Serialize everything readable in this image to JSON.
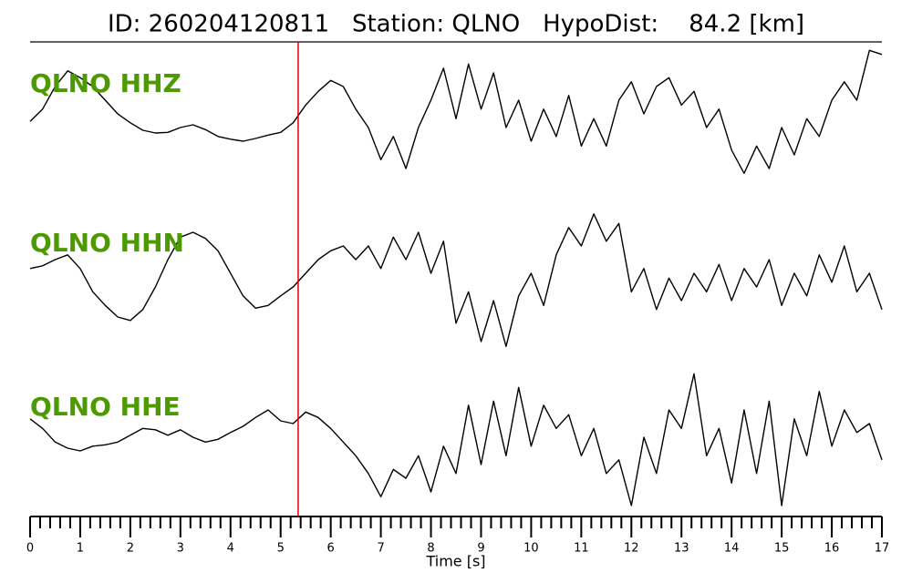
{
  "chart_data": {
    "type": "line",
    "title": "ID: 260204120811   Station: QLNO   HypoDist:    84.2 [km]",
    "x_label": "Time [s]",
    "xlim": [
      0,
      17
    ],
    "xticks": [
      0,
      1,
      2,
      3,
      4,
      5,
      6,
      7,
      8,
      9,
      10,
      11,
      12,
      13,
      14,
      15,
      16,
      17
    ],
    "pick_time": 5.35,
    "pick_color": "#e00000",
    "label_color": "#4c9a00",
    "x": [
      0,
      0.25,
      0.5,
      0.75,
      1,
      1.25,
      1.5,
      1.75,
      2,
      2.25,
      2.5,
      2.75,
      3,
      3.25,
      3.5,
      3.75,
      4,
      4.25,
      4.5,
      4.75,
      5,
      5.25,
      5.5,
      5.75,
      6,
      6.25,
      6.5,
      6.75,
      7,
      7.25,
      7.5,
      7.75,
      8,
      8.25,
      8.5,
      8.75,
      9,
      9.25,
      9.5,
      9.75,
      10,
      10.25,
      10.5,
      10.75,
      11,
      11.25,
      11.5,
      11.75,
      12,
      12.25,
      12.5,
      12.75,
      13,
      13.25,
      13.5,
      13.75,
      14,
      14.25,
      14.5,
      14.75,
      15,
      15.25,
      15.5,
      15.75,
      16,
      16.25,
      16.5,
      16.75,
      17
    ],
    "series": [
      {
        "name": "QLNO HHZ",
        "color": "#000000",
        "values": [
          -0.11,
          0.07,
          0.4,
          0.63,
          0.53,
          0.4,
          0.2,
          0,
          -0.13,
          -0.24,
          -0.28,
          -0.27,
          -0.2,
          -0.16,
          -0.23,
          -0.33,
          -0.37,
          -0.4,
          -0.36,
          -0.31,
          -0.27,
          -0.13,
          0.13,
          0.33,
          0.49,
          0.4,
          0.07,
          -0.2,
          -0.67,
          -0.33,
          -0.8,
          -0.2,
          0.2,
          0.67,
          -0.07,
          0.73,
          0.07,
          0.6,
          -0.2,
          0.2,
          -0.4,
          0.07,
          -0.33,
          0.27,
          -0.47,
          -0.07,
          -0.47,
          0.2,
          0.47,
          0,
          0.4,
          0.53,
          0.13,
          0.33,
          -0.2,
          0.07,
          -0.53,
          -0.87,
          -0.47,
          -0.8,
          -0.2,
          -0.6,
          -0.07,
          -0.33,
          0.2,
          0.47,
          0.2,
          0.93,
          0.87
        ]
      },
      {
        "name": "QLNO HHN",
        "color": "#000000",
        "values": [
          0.07,
          0.11,
          0.2,
          0.27,
          0.07,
          -0.27,
          -0.47,
          -0.64,
          -0.69,
          -0.53,
          -0.2,
          0.2,
          0.53,
          0.6,
          0.51,
          0.33,
          0,
          -0.33,
          -0.51,
          -0.47,
          -0.33,
          -0.2,
          0,
          0.2,
          0.33,
          0.4,
          0.2,
          0.4,
          0.07,
          0.53,
          0.2,
          0.6,
          0,
          0.47,
          -0.73,
          -0.27,
          -1,
          -0.4,
          -1.07,
          -0.33,
          0,
          -0.47,
          0.27,
          0.67,
          0.4,
          0.87,
          0.47,
          0.73,
          -0.27,
          0.07,
          -0.53,
          -0.07,
          -0.4,
          0,
          -0.27,
          0.13,
          -0.4,
          0.07,
          -0.2,
          0.2,
          -0.47,
          0,
          -0.33,
          0.27,
          -0.13,
          0.4,
          -0.27,
          0,
          -0.53
        ]
      },
      {
        "name": "QLNO HHE",
        "color": "#000000",
        "values": [
          0.27,
          0.13,
          -0.07,
          -0.16,
          -0.2,
          -0.13,
          -0.11,
          -0.07,
          0.03,
          0.13,
          0.11,
          0.03,
          0.11,
          0,
          -0.07,
          -0.03,
          0.07,
          0.16,
          0.29,
          0.4,
          0.24,
          0.2,
          0.37,
          0.29,
          0.13,
          -0.07,
          -0.27,
          -0.53,
          -0.87,
          -0.47,
          -0.6,
          -0.27,
          -0.8,
          -0.13,
          -0.53,
          0.47,
          -0.4,
          0.53,
          -0.27,
          0.73,
          -0.13,
          0.47,
          0.13,
          0.33,
          -0.27,
          0.13,
          -0.53,
          -0.33,
          -1,
          0,
          -0.53,
          0.4,
          0.13,
          0.93,
          -0.27,
          0.13,
          -0.67,
          0.4,
          -0.53,
          0.53,
          -1,
          0.27,
          -0.27,
          0.67,
          -0.13,
          0.4,
          0.07,
          0.2,
          -0.33
        ]
      }
    ]
  }
}
